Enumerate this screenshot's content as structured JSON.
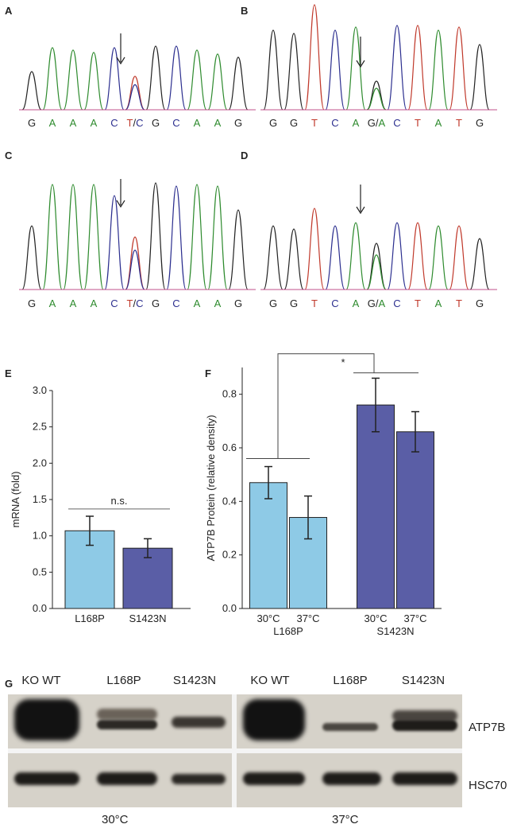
{
  "panels": {
    "A": {
      "label": "A",
      "bases": [
        "G",
        "A",
        "A",
        "A",
        "C",
        "T/C",
        "G",
        "C",
        "A",
        "A",
        "G"
      ]
    },
    "B": {
      "label": "B",
      "bases": [
        "G",
        "G",
        "T",
        "C",
        "A",
        "G/A",
        "C",
        "T",
        "A",
        "T",
        "G"
      ]
    },
    "C": {
      "label": "C",
      "bases": [
        "G",
        "A",
        "A",
        "A",
        "C",
        "T/C",
        "G",
        "C",
        "A",
        "A",
        "G"
      ]
    },
    "D": {
      "label": "D",
      "bases": [
        "G",
        "G",
        "T",
        "C",
        "A",
        "G/A",
        "C",
        "T",
        "A",
        "T",
        "G"
      ]
    }
  },
  "base_colors": {
    "G": "#222222",
    "A": "#2e8b2e",
    "T": "#c0392b",
    "C": "#2c2f8f"
  },
  "chart_data": [
    {
      "panel": "E",
      "type": "bar",
      "ylabel": "mRNA (fold)",
      "categories": [
        "L168P",
        "S1423N"
      ],
      "values": [
        1.07,
        0.83
      ],
      "errors": [
        0.2,
        0.13
      ],
      "colors": [
        "#8ecae6",
        "#5a5ea6"
      ],
      "ylim": [
        0,
        3.0
      ],
      "yticks": [
        "0.0",
        "0.5",
        "1.0",
        "1.5",
        "2.0",
        "2.5",
        "3.0"
      ],
      "annotation": "n.s."
    },
    {
      "panel": "F",
      "type": "bar",
      "ylabel": "ATP7B Protein (relative density)",
      "groups": [
        "L168P",
        "S1423N"
      ],
      "categories": [
        "30°C",
        "37°C",
        "30°C",
        "37°C"
      ],
      "values": [
        0.47,
        0.34,
        0.76,
        0.66
      ],
      "errors": [
        0.06,
        0.08,
        0.1,
        0.075
      ],
      "colors": [
        "#8ecae6",
        "#8ecae6",
        "#5a5ea6",
        "#5a5ea6"
      ],
      "ylim": [
        0,
        0.9
      ],
      "yticks": [
        "0.0",
        "0.2",
        "0.4",
        "0.6",
        "0.8"
      ],
      "annotation": "*"
    }
  ],
  "blot": {
    "label": "G",
    "lanes": [
      "KO WT",
      "L168P",
      "S1423N",
      "KO WT",
      "L168P",
      "S1423N"
    ],
    "rows": [
      "ATP7B",
      "HSC70"
    ],
    "temps": [
      "30°C",
      "37°C"
    ]
  }
}
